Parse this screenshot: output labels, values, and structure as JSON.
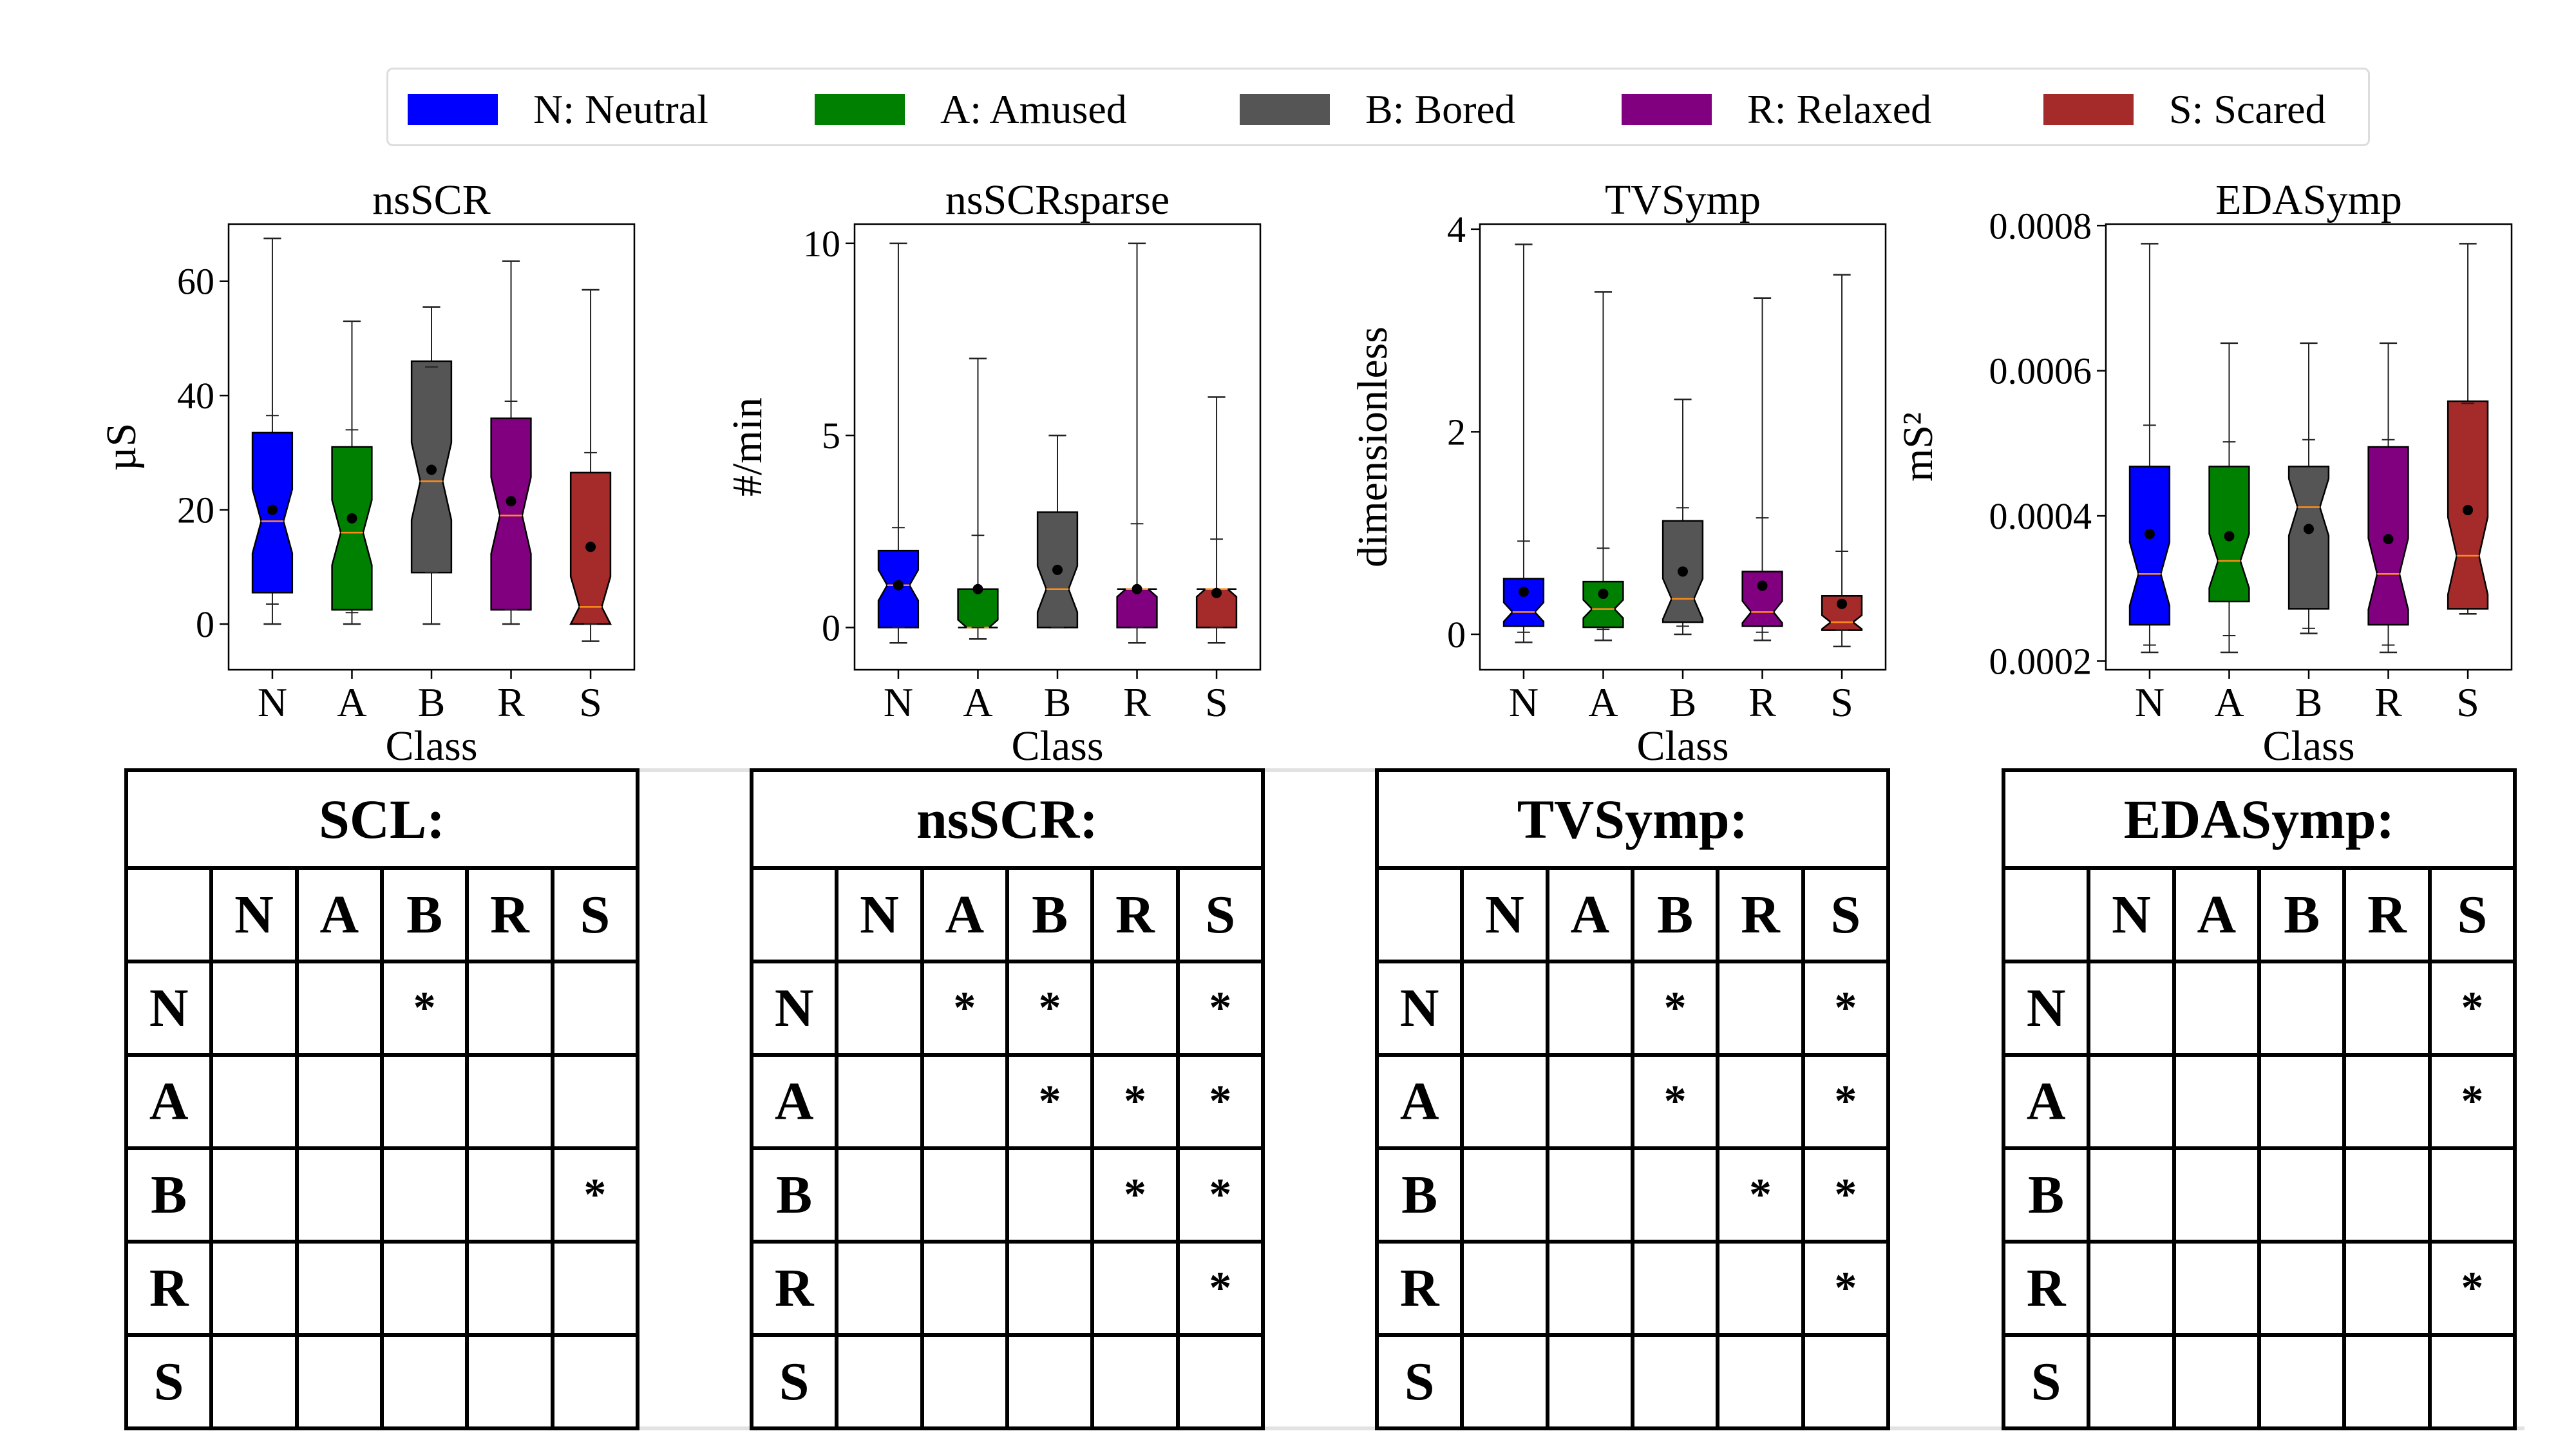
{
  "legend": [
    {
      "code": "N",
      "label": "N: Neutral",
      "color": "#0000ff"
    },
    {
      "code": "A",
      "label": "A: Amused",
      "color": "#008000"
    },
    {
      "code": "B",
      "label": "B: Bored",
      "color": "#555555"
    },
    {
      "code": "R",
      "label": "R: Relaxed",
      "color": "#800080"
    },
    {
      "code": "S",
      "label": "S: Scared",
      "color": "#a52a2a"
    }
  ],
  "chart_data": [
    {
      "type": "boxplot",
      "title": "nsSCR",
      "xlabel": "Class",
      "ylabel": "µS",
      "categories": [
        "N",
        "A",
        "B",
        "R",
        "S"
      ],
      "ylim": [
        -8,
        70
      ],
      "yticks": [
        0,
        20,
        40,
        60
      ],
      "ytick_labels": [
        "0",
        "20",
        "40",
        "60"
      ],
      "boxes": [
        {
          "whislo": 0,
          "q1": 5.5,
          "med": 18,
          "q3": 33.5,
          "whishi": 67.5,
          "mean": 20,
          "capslo": 3.5,
          "capshi": 36.5
        },
        {
          "whislo": 0,
          "q1": 2.5,
          "med": 16,
          "q3": 31,
          "whishi": 53,
          "mean": 18.5,
          "capslo": 2,
          "capshi": 34
        },
        {
          "whislo": 0,
          "q1": 9,
          "med": 25,
          "q3": 46,
          "whishi": 55.5,
          "mean": 27,
          "capslo": 9,
          "capshi": 45
        },
        {
          "whislo": 0,
          "q1": 2.5,
          "med": 19,
          "q3": 36,
          "whishi": 63.5,
          "mean": 21.5,
          "capslo": 2.5,
          "capshi": 39
        },
        {
          "whislo": -3,
          "q1": 0,
          "med": 3,
          "q3": 26.5,
          "whishi": 58.5,
          "mean": 13.5,
          "capslo": 0,
          "capshi": 30
        }
      ]
    },
    {
      "type": "boxplot",
      "title": "nsSCRsparse",
      "xlabel": "Class",
      "ylabel": "#/min",
      "categories": [
        "N",
        "A",
        "B",
        "R",
        "S"
      ],
      "ylim": [
        -1.1,
        10.5
      ],
      "yticks": [
        0,
        5,
        10
      ],
      "ytick_labels": [
        "0",
        "5",
        "10"
      ],
      "boxes": [
        {
          "whislo": -0.4,
          "q1": 0,
          "med": 1.1,
          "q3": 2,
          "whishi": 10,
          "mean": 1.1,
          "capslo": 0,
          "capshi": 2.6
        },
        {
          "whislo": -0.3,
          "q1": 0,
          "med": 0,
          "q3": 1,
          "whishi": 7,
          "mean": 1,
          "capslo": 0,
          "capshi": 2.4
        },
        {
          "whislo": 0,
          "q1": 0,
          "med": 1,
          "q3": 3,
          "whishi": 5,
          "mean": 1.5,
          "capslo": 0,
          "capshi": 5
        },
        {
          "whislo": -0.4,
          "q1": 0,
          "med": 1,
          "q3": 1,
          "whishi": 10,
          "mean": 1,
          "capslo": 0,
          "capshi": 2.7
        },
        {
          "whislo": -0.4,
          "q1": 0,
          "med": 1,
          "q3": 1,
          "whishi": 6,
          "mean": 0.9,
          "capslo": 0,
          "capshi": 2.3
        }
      ]
    },
    {
      "type": "boxplot",
      "title": "TVSymp",
      "xlabel": "Class",
      "ylabel": "dimensionless",
      "categories": [
        "N",
        "A",
        "B",
        "R",
        "S"
      ],
      "ylim": [
        -0.35,
        4.05
      ],
      "yticks": [
        0,
        2,
        4
      ],
      "ytick_labels": [
        "0",
        "2",
        "4"
      ],
      "boxes": [
        {
          "whislo": -0.08,
          "q1": 0.08,
          "med": 0.22,
          "q3": 0.55,
          "whishi": 3.85,
          "mean": 0.42,
          "capslo": 0.02,
          "capshi": 0.92
        },
        {
          "whislo": -0.06,
          "q1": 0.07,
          "med": 0.25,
          "q3": 0.52,
          "whishi": 3.38,
          "mean": 0.4,
          "capslo": 0.05,
          "capshi": 0.85
        },
        {
          "whislo": 0,
          "q1": 0.12,
          "med": 0.35,
          "q3": 1.12,
          "whishi": 2.32,
          "mean": 0.62,
          "capslo": 0.08,
          "capshi": 1.25
        },
        {
          "whislo": -0.06,
          "q1": 0.08,
          "med": 0.22,
          "q3": 0.62,
          "whishi": 3.32,
          "mean": 0.48,
          "capslo": 0.02,
          "capshi": 1.15
        },
        {
          "whislo": -0.12,
          "q1": 0.04,
          "med": 0.12,
          "q3": 0.38,
          "whishi": 3.55,
          "mean": 0.3,
          "capslo": 0.04,
          "capshi": 0.82
        }
      ]
    },
    {
      "type": "boxplot",
      "title": "EDASymp",
      "xlabel": "Class",
      "ylabel": "mS²",
      "categories": [
        "N",
        "A",
        "B",
        "R",
        "S"
      ],
      "ylim": [
        0.000188,
        0.000802
      ],
      "yticks": [
        0.0002,
        0.0004,
        0.0006,
        0.0008
      ],
      "ytick_labels": [
        "0.0002",
        "0.0004",
        "0.0006",
        "0.0008"
      ],
      "boxes": [
        {
          "whislo": 0.000212,
          "q1": 0.00025,
          "med": 0.00032,
          "q3": 0.000468,
          "whishi": 0.000775,
          "mean": 0.000375,
          "capslo": 0.000222,
          "capshi": 0.000525
        },
        {
          "whislo": 0.000212,
          "q1": 0.000282,
          "med": 0.000338,
          "q3": 0.000468,
          "whishi": 0.000638,
          "mean": 0.000372,
          "capslo": 0.000235,
          "capshi": 0.000502
        },
        {
          "whislo": 0.000238,
          "q1": 0.000272,
          "med": 0.000412,
          "q3": 0.000468,
          "whishi": 0.000638,
          "mean": 0.000382,
          "capslo": 0.000245,
          "capshi": 0.000505
        },
        {
          "whislo": 0.000212,
          "q1": 0.00025,
          "med": 0.00032,
          "q3": 0.000495,
          "whishi": 0.000638,
          "mean": 0.000368,
          "capslo": 0.000222,
          "capshi": 0.000505
        },
        {
          "whislo": 0.000265,
          "q1": 0.000272,
          "med": 0.000345,
          "q3": 0.000558,
          "whishi": 0.000775,
          "mean": 0.000408,
          "capslo": 0.000265,
          "capshi": 0.000555
        }
      ]
    }
  ],
  "tables": [
    {
      "title": "SCL:",
      "cols": [
        "N",
        "A",
        "B",
        "R",
        "S"
      ],
      "rows": [
        {
          "label": "N",
          "cells": [
            "",
            "",
            "*",
            "",
            ""
          ]
        },
        {
          "label": "A",
          "cells": [
            "",
            "",
            "",
            "",
            ""
          ]
        },
        {
          "label": "B",
          "cells": [
            "",
            "",
            "",
            "",
            "*"
          ]
        },
        {
          "label": "R",
          "cells": [
            "",
            "",
            "",
            "",
            ""
          ]
        },
        {
          "label": "S",
          "cells": [
            "",
            "",
            "",
            "",
            ""
          ]
        }
      ]
    },
    {
      "title": "nsSCR:",
      "cols": [
        "N",
        "A",
        "B",
        "R",
        "S"
      ],
      "rows": [
        {
          "label": "N",
          "cells": [
            "",
            "*",
            "*",
            "",
            "*"
          ]
        },
        {
          "label": "A",
          "cells": [
            "",
            "",
            "*",
            "*",
            "*"
          ]
        },
        {
          "label": "B",
          "cells": [
            "",
            "",
            "",
            "*",
            "*"
          ]
        },
        {
          "label": "R",
          "cells": [
            "",
            "",
            "",
            "",
            "*"
          ]
        },
        {
          "label": "S",
          "cells": [
            "",
            "",
            "",
            "",
            ""
          ]
        }
      ]
    },
    {
      "title": "TVSymp:",
      "cols": [
        "N",
        "A",
        "B",
        "R",
        "S"
      ],
      "rows": [
        {
          "label": "N",
          "cells": [
            "",
            "",
            "*",
            "",
            "*"
          ]
        },
        {
          "label": "A",
          "cells": [
            "",
            "",
            "*",
            "",
            "*"
          ]
        },
        {
          "label": "B",
          "cells": [
            "",
            "",
            "",
            "*",
            "*"
          ]
        },
        {
          "label": "R",
          "cells": [
            "",
            "",
            "",
            "",
            "*"
          ]
        },
        {
          "label": "S",
          "cells": [
            "",
            "",
            "",
            "",
            ""
          ]
        }
      ]
    },
    {
      "title": "EDASymp:",
      "cols": [
        "N",
        "A",
        "B",
        "R",
        "S"
      ],
      "rows": [
        {
          "label": "N",
          "cells": [
            "",
            "",
            "",
            "",
            "*"
          ]
        },
        {
          "label": "A",
          "cells": [
            "",
            "",
            "",
            "",
            "*"
          ]
        },
        {
          "label": "B",
          "cells": [
            "",
            "",
            "",
            "",
            ""
          ]
        },
        {
          "label": "R",
          "cells": [
            "",
            "",
            "",
            "",
            "*"
          ]
        },
        {
          "label": "S",
          "cells": [
            "",
            "",
            "",
            "",
            ""
          ]
        }
      ]
    }
  ]
}
